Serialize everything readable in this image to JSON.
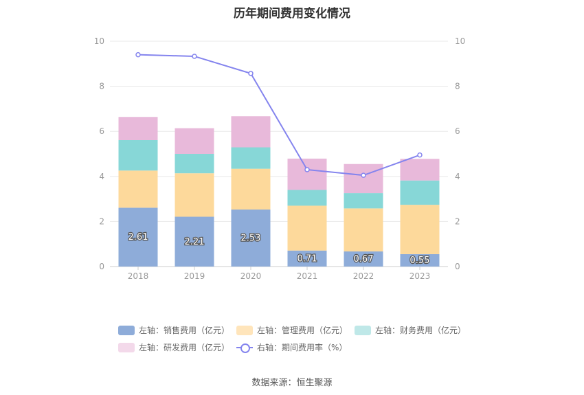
{
  "chart_data": {
    "type": "bar",
    "title": "历年期间费用变化情况",
    "categories": [
      "2018",
      "2019",
      "2020",
      "2021",
      "2022",
      "2023"
    ],
    "series": [
      {
        "name": "左轴：销售费用（亿元）",
        "color": "#8eacd9",
        "values": [
          2.61,
          2.21,
          2.53,
          0.71,
          0.67,
          0.55
        ]
      },
      {
        "name": "左轴：管理费用（亿元）",
        "color": "#fdd99b",
        "values": [
          1.65,
          1.93,
          1.81,
          1.99,
          1.91,
          2.19
        ]
      },
      {
        "name": "左轴：财务费用（亿元）",
        "color": "#87d7d7",
        "values": [
          1.35,
          0.86,
          0.95,
          0.7,
          0.68,
          1.08
        ]
      },
      {
        "name": "左轴：研发费用（亿元）",
        "color": "#e8b9da",
        "values": [
          1.03,
          1.14,
          1.38,
          1.39,
          1.29,
          0.96
        ]
      }
    ],
    "line_series": {
      "name": "右轴：期间费用率（%）",
      "color": "#8484ee",
      "values": [
        9.4,
        9.33,
        8.57,
        4.3,
        4.05,
        4.95
      ]
    },
    "bar_labels": [
      "2.61",
      "2.21",
      "2.53",
      "0.71",
      "0.67",
      "0.55"
    ],
    "ylim_left": [
      0,
      10
    ],
    "ylim_right": [
      0,
      10
    ],
    "yticks_left": [
      "0",
      "2",
      "4",
      "6",
      "8",
      "10"
    ],
    "yticks_right": [
      "0",
      "2",
      "4",
      "6",
      "8",
      "10"
    ],
    "grid": true,
    "legend_position": "bottom"
  },
  "source": "数据来源：恒生聚源"
}
